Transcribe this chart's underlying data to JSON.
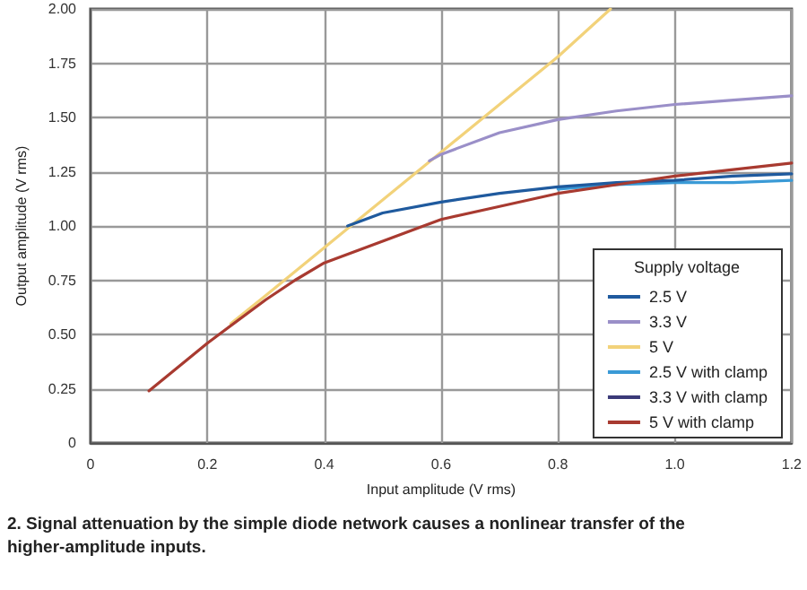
{
  "chart_data": {
    "type": "line",
    "xlabel": "Input amplitude (V rms)",
    "ylabel": "Output amplitude (V rms)",
    "legend_title": "Supply voltage",
    "annotations": [
      "2. Signal attenuation by the simple diode network causes a nonlinear transfer of the higher-amplitude inputs."
    ],
    "series": [
      {
        "name": "5 V",
        "color": "#f2d27a",
        "x": [
          0.24,
          0.3,
          0.4,
          0.5,
          0.6,
          0.7,
          0.8,
          0.89
        ],
        "values": [
          0.55,
          0.68,
          0.9,
          1.12,
          1.34,
          1.56,
          1.78,
          2.0
        ]
      },
      {
        "name": "3.3 V",
        "color": "#9a8fc8",
        "x": [
          0.58,
          0.6,
          0.7,
          0.8,
          0.9,
          1.0,
          1.1,
          1.2
        ],
        "values": [
          1.3,
          1.33,
          1.43,
          1.49,
          1.53,
          1.56,
          1.58,
          1.6
        ]
      },
      {
        "name": "2.5 V with clamp",
        "color": "#3a9ad6",
        "x": [
          0.8,
          0.9,
          1.0,
          1.1,
          1.2
        ],
        "values": [
          1.17,
          1.19,
          1.2,
          1.2,
          1.21
        ]
      },
      {
        "name": "2.5 V",
        "color": "#1f5a9e",
        "x": [
          0.44,
          0.5,
          0.6,
          0.7,
          0.8,
          0.9,
          1.0,
          1.1,
          1.2
        ],
        "values": [
          1.0,
          1.06,
          1.11,
          1.15,
          1.18,
          1.2,
          1.21,
          1.23,
          1.24
        ]
      },
      {
        "name": "3.3 V with clamp",
        "color": "#3b3a78"
      },
      {
        "name": "5 V with clamp",
        "color": "#a83a30",
        "x": [
          0.1,
          0.2,
          0.22,
          0.3,
          0.35,
          0.4,
          0.5,
          0.6,
          0.7,
          0.8,
          0.9,
          1.0,
          1.1,
          1.2
        ],
        "values": [
          0.24,
          0.46,
          0.5,
          0.66,
          0.75,
          0.83,
          0.93,
          1.03,
          1.09,
          1.15,
          1.19,
          1.23,
          1.26,
          1.29
        ]
      }
    ],
    "xlim": [
      0,
      1.2
    ],
    "xticks": [
      0,
      0.2,
      0.4,
      0.6,
      0.8,
      {
        "value": 1,
        "label": "1.0"
      },
      1.2
    ],
    "ylim": [
      0,
      2
    ],
    "yticks": [
      0,
      0.25,
      {
        "value": 0.5,
        "label": "0.50"
      },
      0.75,
      {
        "value": 1,
        "label": "1.00"
      },
      1.25,
      {
        "value": 1.5,
        "label": "1.50"
      },
      1.75,
      {
        "value": 2,
        "label": "2.00"
      }
    ],
    "grid": true,
    "legend": "bottom right",
    "marker": "none",
    "line_style": "solid"
  }
}
